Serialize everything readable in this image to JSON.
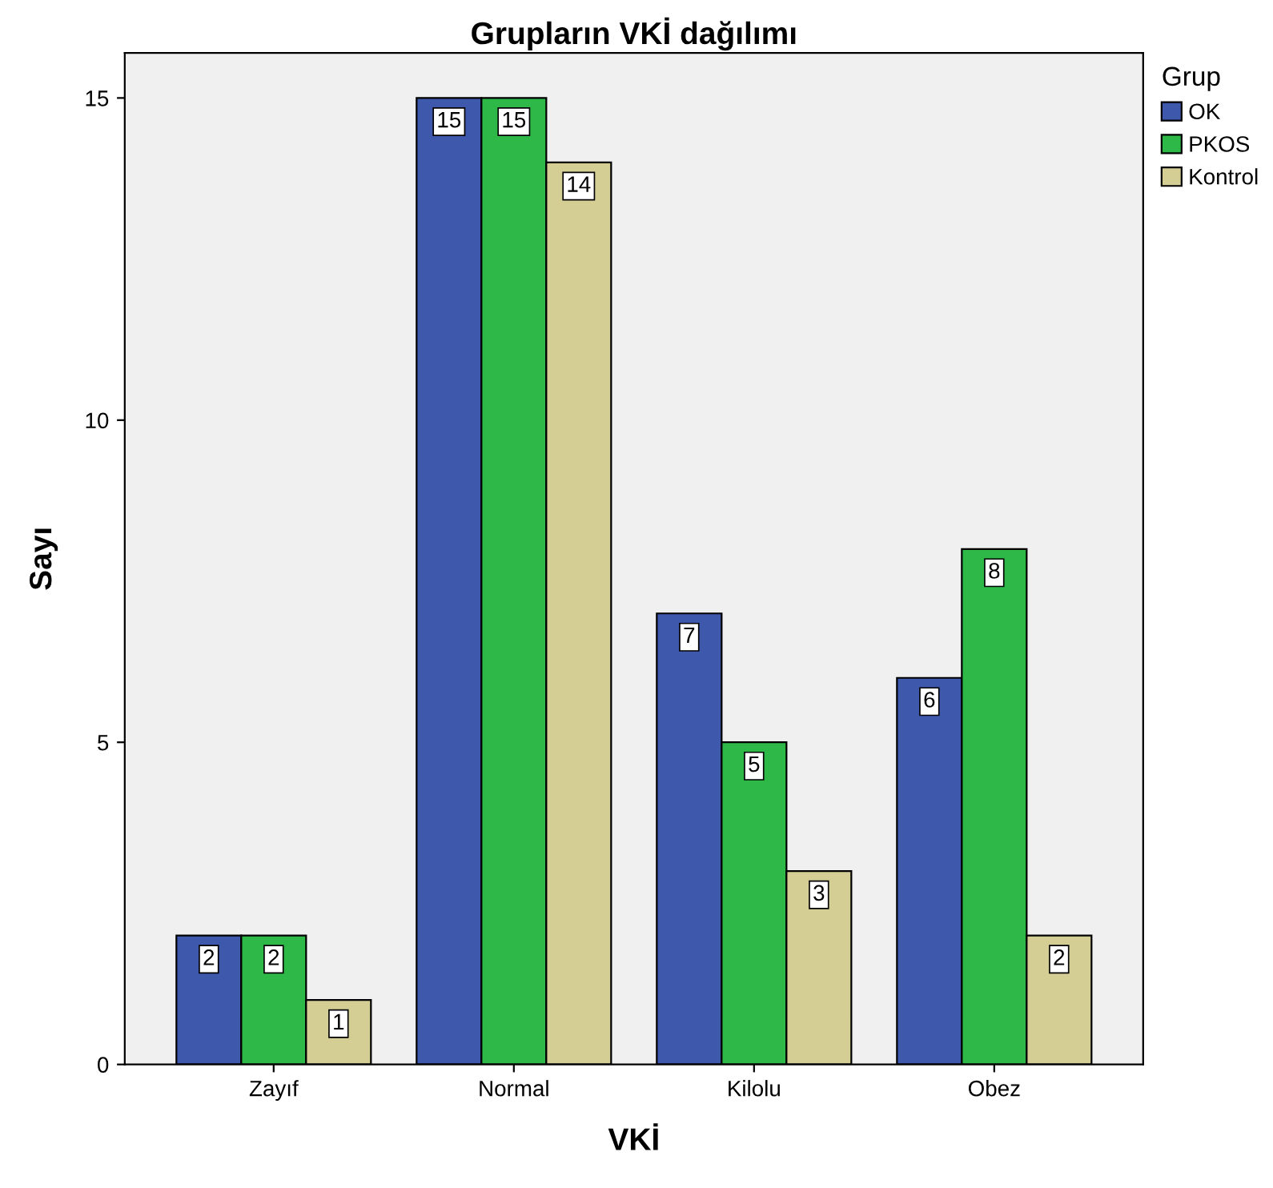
{
  "chart_data": {
    "type": "bar",
    "title": "Grupların VKİ dağılımı",
    "xlabel": "VKİ",
    "ylabel": "Sayı",
    "legend_title": "Grup",
    "categories": [
      "Zayıf",
      "Normal",
      "Kilolu",
      "Obez"
    ],
    "series": [
      {
        "name": "OK",
        "color": "#3e58ac",
        "values": [
          2,
          15,
          7,
          6
        ]
      },
      {
        "name": "PKOS",
        "color": "#2eb848",
        "values": [
          2,
          15,
          5,
          8
        ]
      },
      {
        "name": "Kontrol",
        "color": "#d4ce95",
        "values": [
          1,
          14,
          3,
          2
        ]
      }
    ],
    "ylim": [
      0,
      15.7
    ],
    "yticks": [
      0,
      5,
      10,
      15
    ],
    "grid": false,
    "legend": "top right",
    "data_labels": true
  }
}
